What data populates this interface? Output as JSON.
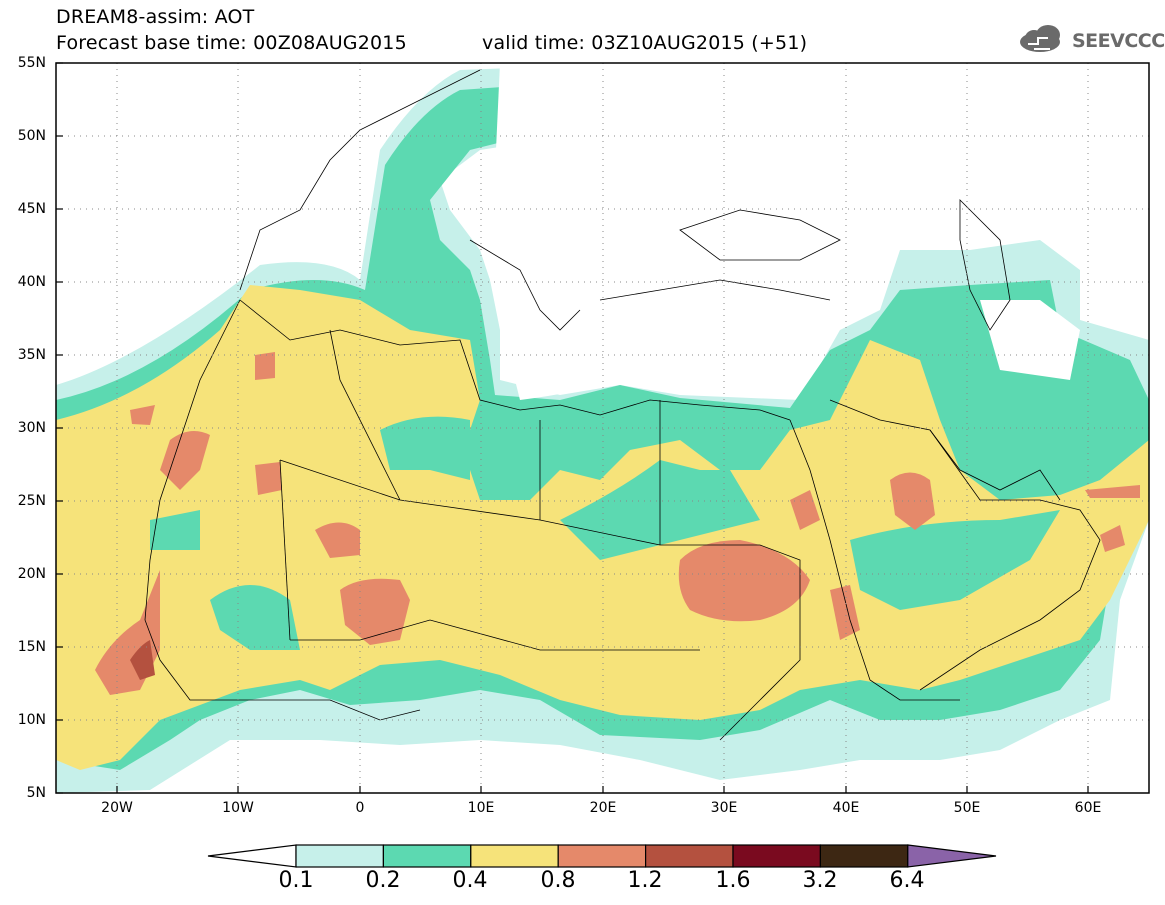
{
  "header": {
    "line1": "DREAM8-assim: AOT",
    "base_time": "Forecast base time: 00Z08AUG2015",
    "valid_time": "valid time: 03Z10AUG2015 (+51)"
  },
  "logo": {
    "text": "SEEVCCC",
    "icon": "cloud-icon"
  },
  "map": {
    "variable": "AOT",
    "lat_range": [
      5,
      55
    ],
    "lon_range": [
      -25,
      65
    ],
    "lat_labels": [
      "55N",
      "50N",
      "45N",
      "40N",
      "35N",
      "30N",
      "25N",
      "20N",
      "15N",
      "10N",
      "5N"
    ],
    "lon_labels": [
      "20W",
      "10W",
      "0",
      "10E",
      "20E",
      "30E",
      "40E",
      "50E",
      "60E"
    ],
    "grid": "dotted"
  },
  "legend": {
    "levels": [
      "0.1",
      "0.2",
      "0.4",
      "0.8",
      "1.2",
      "1.6",
      "3.2",
      "6.4"
    ],
    "colors": [
      "#ffffff",
      "#c6f0ea",
      "#5cd9b1",
      "#f6e37a",
      "#e5896a",
      "#b4513f",
      "#7a0a1f",
      "#3d2713",
      "#8a63a8"
    ]
  }
}
